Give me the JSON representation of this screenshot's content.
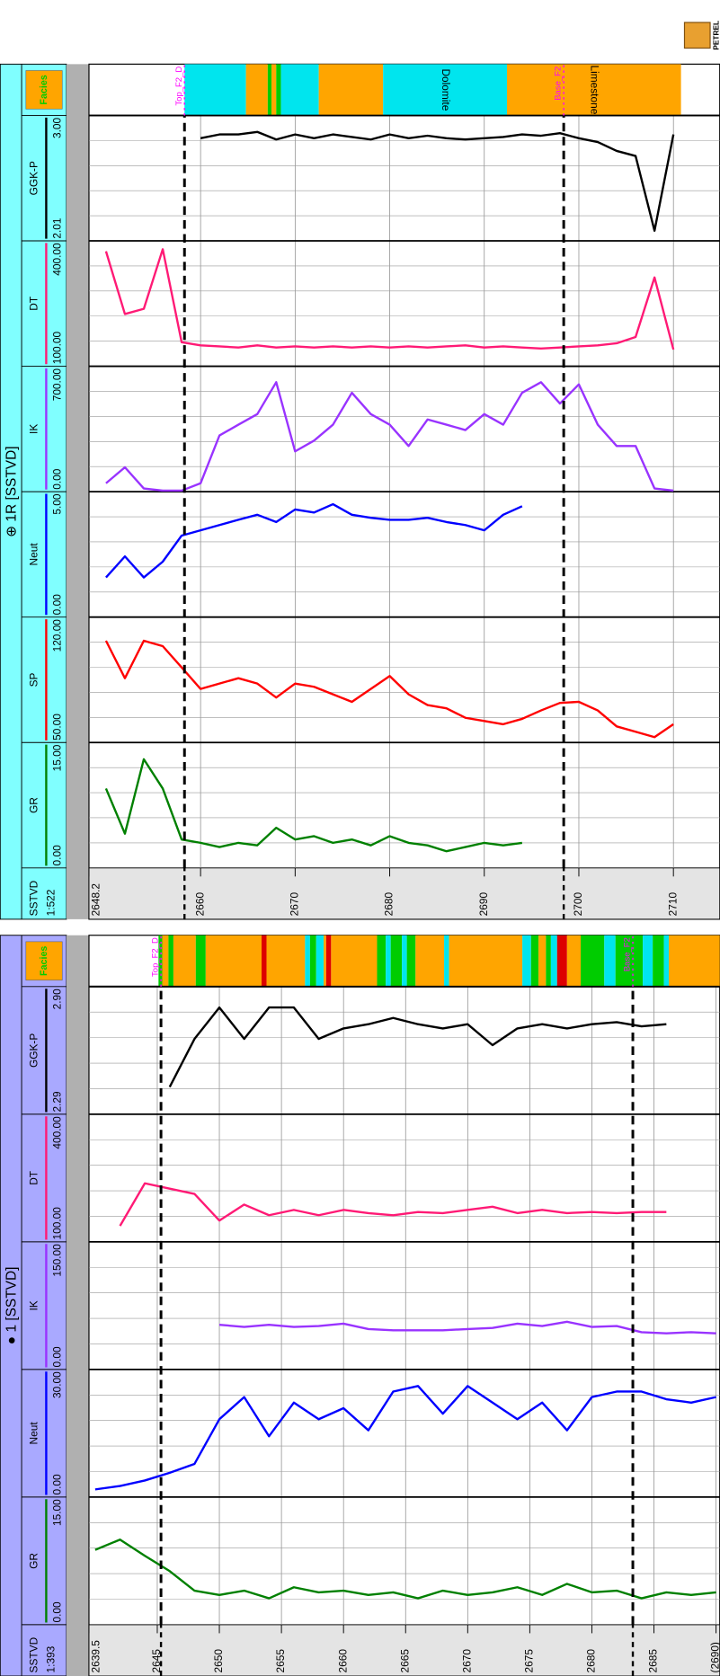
{
  "logo": "PETREL",
  "chart_data": [
    {
      "type": "well-log",
      "title": "● 1 [SSTVD]",
      "header_color": "#a9a9ff",
      "depth_label": "SSTVD",
      "scale_label": "1:393",
      "facies_label": "Facies",
      "depthlim": [
        2639.5,
        2690.3
      ],
      "depth_ticks": [
        2639.5,
        2645,
        2650,
        2655,
        2660,
        2665,
        2670,
        2675,
        2680,
        2685,
        {
          "value": 2690,
          "label": "(2690)"
        }
      ],
      "depth": [
        2640,
        2642,
        2644,
        2646,
        2648,
        2650,
        2652,
        2654,
        2656,
        2658,
        2660,
        2662,
        2664,
        2666,
        2668,
        2670,
        2672,
        2674,
        2676,
        2678,
        2680,
        2682,
        2684,
        2686,
        2688,
        2690
      ],
      "series": [
        {
          "name": "GR",
          "color": "#008000",
          "xlim": [
            0,
            15
          ],
          "xticks": [
            {
              "value": 0,
              "label": "0.00"
            },
            {
              "value": 15,
              "label": "15.00"
            }
          ],
          "values": [
            8.8,
            10,
            8.1,
            6.3,
            4,
            3.5,
            4,
            3.1,
            4.4,
            3.8,
            4,
            3.5,
            3.8,
            3.1,
            4,
            3.5,
            3.8,
            4.4,
            3.5,
            4.8,
            3.8,
            4,
            3.1,
            3.8,
            3.5,
            3.8
          ]
        },
        {
          "name": "Neut",
          "color": "#0000ff",
          "xlim": [
            0,
            30
          ],
          "xticks": [
            {
              "value": 0,
              "label": "0.00"
            },
            {
              "value": 30,
              "label": "30.00"
            }
          ],
          "values": [
            1.8,
            2.6,
            3.9,
            5.7,
            7.8,
            18.3,
            23.5,
            14.3,
            22.2,
            18.3,
            20.9,
            15.7,
            24.8,
            26.1,
            19.6,
            26.1,
            22.2,
            18.3,
            22.2,
            15.7,
            23.5,
            24.8,
            24.8,
            23,
            22.2,
            23.5
          ]
        },
        {
          "name": "IK",
          "color": "#9933ff",
          "xlim": [
            0,
            150
          ],
          "xticks": [
            {
              "value": 0,
              "label": "0.00"
            },
            {
              "value": 150,
              "label": "150.00"
            }
          ],
          "values": [
            null,
            null,
            null,
            null,
            null,
            52.5,
            50,
            52.5,
            50,
            51,
            53.8,
            47.5,
            46,
            46,
            46,
            47.5,
            48.8,
            53.8,
            51,
            56,
            50,
            51,
            43.8,
            42.5,
            43.8,
            42.5
          ]
        },
        {
          "name": "DT",
          "color": "#ff1a75",
          "xlim": [
            100,
            400
          ],
          "xticks": [
            {
              "value": 100,
              "label": "100.00"
            },
            {
              "value": 400,
              "label": "400.00"
            }
          ],
          "values": [
            null,
            137.5,
            237.5,
            225,
            212.5,
            150,
            187.5,
            162.5,
            175,
            162.5,
            175,
            167.5,
            162.5,
            170,
            167.5,
            175,
            182.5,
            167.5,
            175,
            167.5,
            170,
            167.5,
            170,
            170,
            null,
            null
          ]
        },
        {
          "name": "GGK-P",
          "color": "#000000",
          "xlim": [
            2.29,
            2.9
          ],
          "xticks": [
            2.29,
            {
              "value": 2.9,
              "label": "2.90"
            }
          ],
          "values": [
            null,
            null,
            null,
            2.42,
            2.65,
            2.8,
            2.65,
            2.8,
            2.8,
            2.65,
            2.7,
            2.72,
            2.75,
            2.72,
            2.7,
            2.72,
            2.62,
            2.7,
            2.72,
            2.7,
            2.72,
            2.73,
            2.71,
            2.72,
            null,
            null
          ]
        }
      ],
      "facies": [
        {
          "top": 2645.1,
          "base": 2645.4,
          "color": "#00cc00"
        },
        {
          "top": 2645.4,
          "base": 2645.9,
          "color": "#ffa500"
        },
        {
          "top": 2645.9,
          "base": 2646.3,
          "color": "#00cc00"
        },
        {
          "top": 2646.3,
          "base": 2648.1,
          "color": "#ffa500"
        },
        {
          "top": 2648.1,
          "base": 2648.9,
          "color": "#00cc00"
        },
        {
          "top": 2648.9,
          "base": 2653.4,
          "color": "#ffa500"
        },
        {
          "top": 2653.4,
          "base": 2653.8,
          "color": "#dd0000"
        },
        {
          "top": 2653.8,
          "base": 2656.9,
          "color": "#ffa500"
        },
        {
          "top": 2656.9,
          "base": 2657.3,
          "color": "#00e5ee"
        },
        {
          "top": 2657.3,
          "base": 2657.8,
          "color": "#00cc00"
        },
        {
          "top": 2657.8,
          "base": 2658.4,
          "color": "#00e5ee"
        },
        {
          "top": 2658.4,
          "base": 2658.6,
          "color": "#ffa500"
        },
        {
          "top": 2658.6,
          "base": 2659.0,
          "color": "#dd0000"
        },
        {
          "top": 2659.0,
          "base": 2662.7,
          "color": "#ffa500"
        },
        {
          "top": 2662.7,
          "base": 2663.4,
          "color": "#00cc00"
        },
        {
          "top": 2663.4,
          "base": 2663.8,
          "color": "#00e5ee"
        },
        {
          "top": 2663.8,
          "base": 2664.7,
          "color": "#00cc00"
        },
        {
          "top": 2664.7,
          "base": 2665.1,
          "color": "#00e5ee"
        },
        {
          "top": 2665.1,
          "base": 2665.8,
          "color": "#00cc00"
        },
        {
          "top": 2665.8,
          "base": 2668.1,
          "color": "#ffa500"
        },
        {
          "top": 2668.1,
          "base": 2668.5,
          "color": "#00e5ee"
        },
        {
          "top": 2668.5,
          "base": 2674.4,
          "color": "#ffa500"
        },
        {
          "top": 2674.4,
          "base": 2675.1,
          "color": "#00e5ee"
        },
        {
          "top": 2675.1,
          "base": 2675.7,
          "color": "#00cc00"
        },
        {
          "top": 2675.7,
          "base": 2676.3,
          "color": "#ffa500"
        },
        {
          "top": 2676.3,
          "base": 2676.7,
          "color": "#00cc00"
        },
        {
          "top": 2676.7,
          "base": 2677.2,
          "color": "#00e5ee"
        },
        {
          "top": 2677.2,
          "base": 2678.0,
          "color": "#dd0000"
        },
        {
          "top": 2678.0,
          "base": 2679.1,
          "color": "#ffa500"
        },
        {
          "top": 2679.1,
          "base": 2681.0,
          "color": "#00cc00"
        },
        {
          "top": 2681.0,
          "base": 2681.9,
          "color": "#00e5ee"
        },
        {
          "top": 2681.9,
          "base": 2684.1,
          "color": "#00cc00"
        },
        {
          "top": 2684.1,
          "base": 2684.9,
          "color": "#00e5ee"
        },
        {
          "top": 2684.9,
          "base": 2685.8,
          "color": "#00cc00"
        },
        {
          "top": 2685.8,
          "base": 2686.2,
          "color": "#00e5ee"
        },
        {
          "top": 2686.2,
          "base": 2690.3,
          "color": "#ffa500"
        }
      ],
      "markers": [
        {
          "name": "Top_F2_D",
          "depth": 2645.3
        },
        {
          "name": "Base_F2",
          "depth": 2683.3
        }
      ]
    },
    {
      "type": "well-log",
      "title": "⊕ 1R [SSTVD]",
      "header_color": "#80ffff",
      "depth_label": "SSTVD",
      "scale_label": "1:522",
      "facies_label": "Facies",
      "depthlim": [
        2648.2,
        2714.9
      ],
      "depth_ticks": [
        2648.2,
        2660,
        2670,
        2680,
        2690,
        2700,
        2710
      ],
      "depth": [
        2650,
        2652,
        2654,
        2656,
        2658,
        2660,
        2662,
        2664,
        2666,
        2668,
        2670,
        2672,
        2674,
        2676,
        2678,
        2680,
        2682,
        2684,
        2686,
        2688,
        2690,
        2692,
        2694,
        2696,
        2698,
        2700,
        2702,
        2704,
        2706,
        2708,
        2710,
        2712,
        2714
      ],
      "series": [
        {
          "name": "GR",
          "color": "#008000",
          "xlim": [
            0,
            15
          ],
          "xticks": [
            {
              "value": 0,
              "label": "0.00"
            },
            {
              "value": 15,
              "label": "15.00"
            }
          ],
          "values": [
            9.5,
            4.1,
            13,
            9.5,
            3.4,
            3,
            2.5,
            3,
            2.7,
            4.8,
            3.4,
            3.8,
            3,
            3.4,
            2.7,
            3.8,
            3,
            2.7,
            2,
            2.5,
            3,
            2.7,
            3,
            null,
            null,
            null,
            null,
            null,
            null,
            null,
            null,
            null,
            null
          ]
        },
        {
          "name": "SP",
          "color": "#ff0000",
          "xlim": [
            50,
            120
          ],
          "xticks": [
            {
              "value": 50,
              "label": "50.00"
            },
            {
              "value": 120,
              "label": "120.00"
            }
          ],
          "values": [
            106.8,
            85.9,
            106.8,
            103.8,
            91.9,
            79.9,
            82.9,
            85.9,
            82.9,
            75.1,
            82.9,
            81.1,
            76.9,
            72.7,
            79.9,
            87.1,
            76.9,
            70.9,
            69.1,
            63.8,
            62,
            60.2,
            63.2,
            67.9,
            72.1,
            72.7,
            67.9,
            59,
            56,
            53,
            60.2,
            null,
            null
          ]
        },
        {
          "name": "Neut",
          "color": "#0000ff",
          "xlim": [
            0,
            5
          ],
          "xticks": [
            {
              "value": 0,
              "label": "0.00"
            },
            {
              "value": 5,
              "label": "5.00"
            }
          ],
          "values": [
            1.58,
            2.42,
            1.58,
            2.21,
            3.25,
            3.46,
            3.67,
            3.88,
            4.08,
            3.79,
            4.29,
            4.17,
            4.5,
            4.08,
            3.96,
            3.88,
            3.88,
            3.96,
            3.79,
            3.67,
            3.46,
            4.08,
            4.42,
            null,
            null,
            null,
            null,
            null,
            null,
            null,
            null,
            null,
            null
          ]
        },
        {
          "name": "IK",
          "color": "#9933ff",
          "xlim": [
            0,
            700
          ],
          "xticks": [
            {
              "value": 0,
              "label": "0.00"
            },
            {
              "value": 700,
              "label": "700.00"
            }
          ],
          "values": [
            47,
            136,
            18,
            6,
            6,
            47,
            314,
            374,
            433,
            611,
            225,
            285,
            374,
            552,
            433,
            374,
            255,
            403,
            374,
            344,
            433,
            374,
            552,
            611,
            492,
            599,
            374,
            255,
            255,
            18,
            6,
            null,
            null
          ]
        },
        {
          "name": "DT",
          "color": "#ff1a75",
          "xlim": [
            100,
            400
          ],
          "xticks": [
            {
              "value": 100,
              "label": "100.00"
            },
            {
              "value": 400,
              "label": "400.00"
            }
          ],
          "values": [
            375,
            225,
            237.5,
            380,
            157.5,
            150,
            147.5,
            145,
            150,
            145,
            147.5,
            145,
            147.5,
            145,
            147.5,
            145,
            147.5,
            145,
            147.5,
            150,
            145,
            147.5,
            145,
            142.5,
            145,
            147.5,
            150,
            155,
            170,
            312.5,
            140,
            null,
            null
          ]
        },
        {
          "name": "GGK-P",
          "color": "#000000",
          "xlim": [
            2.01,
            3
          ],
          "xticks": [
            2.01,
            {
              "value": 3,
              "label": "3.00"
            }
          ],
          "values": [
            null,
            null,
            null,
            null,
            null,
            2.82,
            2.85,
            2.85,
            2.87,
            2.81,
            2.85,
            2.82,
            2.85,
            2.83,
            2.81,
            2.85,
            2.82,
            2.84,
            2.82,
            2.81,
            2.82,
            2.83,
            2.85,
            2.84,
            2.86,
            2.82,
            2.79,
            2.72,
            2.68,
            2.09,
            2.85,
            null,
            null
          ]
        }
      ],
      "facies": [
        {
          "top": 2658.3,
          "base": 2664.8,
          "color": "#00e5ee"
        },
        {
          "top": 2664.8,
          "base": 2667.1,
          "color": "#ffa500"
        },
        {
          "top": 2667.1,
          "base": 2667.5,
          "color": "#00cc00"
        },
        {
          "top": 2667.5,
          "base": 2668.0,
          "color": "#ffa500"
        },
        {
          "top": 2668.0,
          "base": 2668.5,
          "color": "#00cc00"
        },
        {
          "top": 2668.5,
          "base": 2672.5,
          "color": "#00e5ee"
        },
        {
          "top": 2672.5,
          "base": 2679.3,
          "color": "#ffa500"
        },
        {
          "top": 2679.3,
          "base": 2692.4,
          "color": "#00e5ee",
          "label": "Dolomite"
        },
        {
          "top": 2692.4,
          "base": 2710.8,
          "color": "#ffa500",
          "label": "Limestone"
        }
      ],
      "markers": [
        {
          "name": "Top_F2_D",
          "depth": 2658.3
        },
        {
          "name": "Base_F2",
          "depth": 2698.4
        }
      ]
    }
  ]
}
